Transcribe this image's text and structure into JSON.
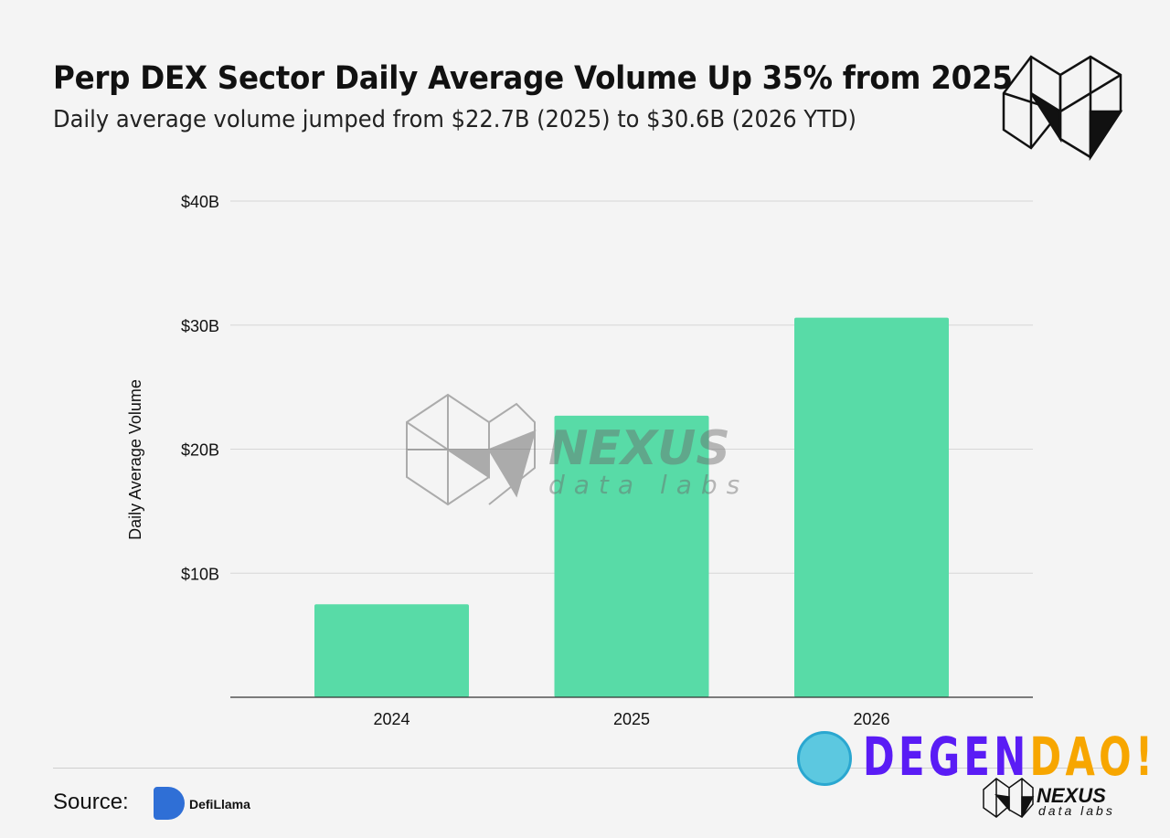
{
  "header": {
    "title": "Perp DEX Sector Daily Average Volume Up 35% from 2025",
    "subtitle": "Daily average volume jumped from $22.7B (2025) to $30.6B (2026 YTD)"
  },
  "chart_data": {
    "type": "bar",
    "categories": [
      "2024",
      "2025",
      "2026"
    ],
    "values": [
      7.5,
      22.7,
      30.6
    ],
    "unit": "$B",
    "ylabel": "Daily Average Volume",
    "xlabel": "",
    "ylim": [
      0,
      40
    ],
    "yticks": [
      10,
      20,
      30,
      40
    ],
    "ytick_labels": [
      "$10B",
      "$20B",
      "$30B",
      "$40B"
    ],
    "grid": true,
    "bar_color": "#58dba7"
  },
  "watermark": {
    "brand": "NEXUS",
    "sub": "data labs"
  },
  "footer": {
    "source_label": "Source:",
    "source_name": "DefiLlama",
    "degen_part1": "DEGEN",
    "degen_part2": "DAO!",
    "nexus_brand": "NEXUS",
    "nexus_sub": "data labs"
  }
}
